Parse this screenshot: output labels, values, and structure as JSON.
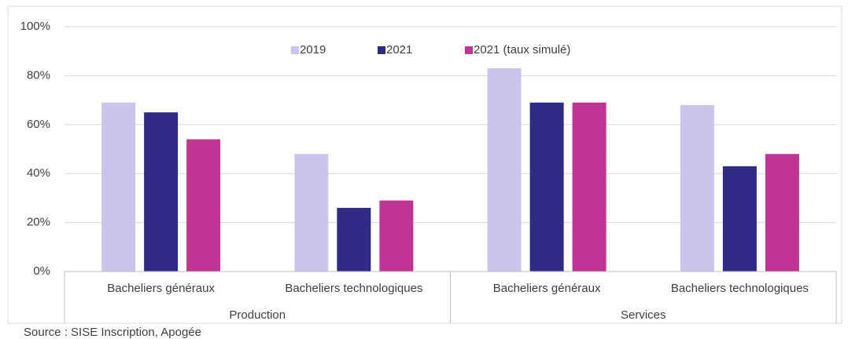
{
  "chart_data": {
    "type": "bar",
    "categories": [
      "Bacheliers généraux",
      "Bacheliers technologiques",
      "Bacheliers généraux",
      "Bacheliers technologiques"
    ],
    "groups": [
      "Production",
      "Services"
    ],
    "series": [
      {
        "name": "2019",
        "color": "#c9c5ec",
        "values": [
          69,
          48,
          83,
          68
        ]
      },
      {
        "name": "2021",
        "color": "#2e2a86",
        "values": [
          65,
          26,
          69,
          43
        ]
      },
      {
        "name": "2021 (taux simulé)",
        "color": "#c03594",
        "values": [
          54,
          29,
          69,
          48
        ]
      }
    ],
    "ylim": [
      0,
      100
    ],
    "yticks": [
      {
        "value": 0,
        "label": "0%"
      },
      {
        "value": 20,
        "label": "20%"
      },
      {
        "value": 40,
        "label": "40%"
      },
      {
        "value": 60,
        "label": "60%"
      },
      {
        "value": 80,
        "label": "80%"
      },
      {
        "value": 100,
        "label": "100%"
      }
    ],
    "grid": true,
    "source": "Source : SISE Inscription, Apogée"
  }
}
